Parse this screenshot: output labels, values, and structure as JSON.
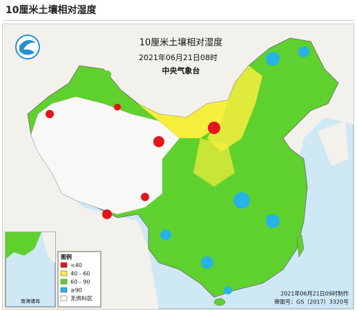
{
  "header": {
    "title": "10厘米土壤相对湿度"
  },
  "map": {
    "title": "10厘米土壤相对湿度",
    "subtitle": "2021年06月21日08时",
    "issuer": "中央气象台",
    "legend": {
      "title": "图例",
      "items": [
        {
          "label": "<40",
          "color": "#e3141b"
        },
        {
          "label": "40 - 60",
          "color": "#f6ee3c"
        },
        {
          "label": "60 - 90",
          "color": "#5fd12e"
        },
        {
          "label": "≥90",
          "color": "#27b3e6"
        },
        {
          "label": "无资料区",
          "color": "#ffffff"
        }
      ]
    },
    "inset_label": "南海诸岛",
    "footer": [
      "2021年06月21日09时制作",
      "审图号：GS（2017）3320号"
    ]
  }
}
